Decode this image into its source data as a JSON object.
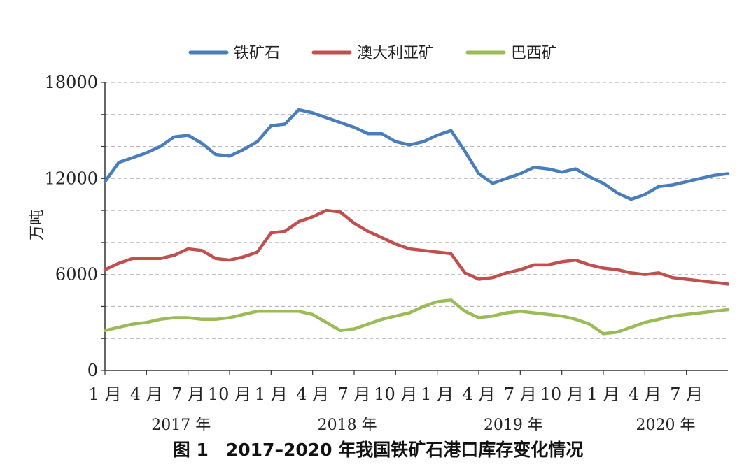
{
  "caption": "图 1　2017–2020 年我国铁矿石港口库存变化情况",
  "chart_data": {
    "type": "line",
    "title": "",
    "ylabel": "万吨",
    "xlabel": "",
    "ylim": [
      0,
      18000
    ],
    "yticks": [
      0,
      6000,
      12000,
      18000
    ],
    "ytick_labels": [
      "0",
      "6000",
      "12000",
      "18000"
    ],
    "grid": "horizontal dashed",
    "legend_position": "top",
    "x_month_ticks": [
      1,
      4,
      7,
      10,
      13,
      16,
      19,
      22,
      25,
      28,
      31,
      34,
      37,
      40,
      43
    ],
    "x_tick_labels": [
      "1 月",
      "4 月",
      "7 月",
      "10 月",
      "1 月",
      "4 月",
      "7 月",
      "10 月",
      "1 月",
      "4 月",
      "7 月",
      "10 月",
      "1 月",
      "4 月",
      "7 月"
    ],
    "year_labels": [
      "2017 年",
      "2018 年",
      "2019 年",
      "2020 年"
    ],
    "x_months": [
      1,
      2,
      3,
      4,
      5,
      6,
      7,
      8,
      9,
      10,
      11,
      12,
      13,
      14,
      15,
      16,
      17,
      18,
      19,
      20,
      21,
      22,
      23,
      24,
      25,
      26,
      27,
      28,
      29,
      30,
      31,
      32,
      33,
      34,
      35,
      36,
      37,
      38,
      39,
      40,
      41,
      42,
      43,
      44,
      45,
      46
    ],
    "series": [
      {
        "name": "铁矿石",
        "color": "#4a7ebb",
        "values": [
          11800,
          13000,
          13300,
          13600,
          14000,
          14600,
          14700,
          14200,
          13500,
          13400,
          13800,
          14300,
          15300,
          15400,
          16300,
          16100,
          15800,
          15500,
          15200,
          14800,
          14800,
          14300,
          14100,
          14300,
          14700,
          15000,
          13700,
          12300,
          11700,
          12000,
          12300,
          12700,
          12600,
          12400,
          12600,
          12100,
          11700,
          11100,
          10700,
          11000,
          11500,
          11600,
          11800,
          12000,
          12200,
          12300
        ],
        "label_anchor": "top"
      },
      {
        "name": "澳大利亚矿",
        "color": "#c0504d",
        "values": [
          6300,
          6700,
          7000,
          7000,
          7000,
          7200,
          7600,
          7500,
          7000,
          6900,
          7100,
          7400,
          8600,
          8700,
          9300,
          9600,
          10000,
          9900,
          9200,
          8700,
          8300,
          7900,
          7600,
          7500,
          7400,
          7300,
          6100,
          5700,
          5800,
          6100,
          6300,
          6600,
          6600,
          6800,
          6900,
          6600,
          6400,
          6300,
          6100,
          6000,
          6100,
          5800,
          5700,
          5600,
          5500,
          5400
        ]
      },
      {
        "name": "巴西矿",
        "color": "#9bbb59",
        "values": [
          2500,
          2700,
          2900,
          3000,
          3200,
          3300,
          3300,
          3200,
          3200,
          3300,
          3500,
          3700,
          3700,
          3700,
          3700,
          3500,
          3000,
          2500,
          2600,
          2900,
          3200,
          3400,
          3600,
          4000,
          4300,
          4400,
          3700,
          3300,
          3400,
          3600,
          3700,
          3600,
          3500,
          3400,
          3200,
          2900,
          2300,
          2400,
          2700,
          3000,
          3200,
          3400,
          3500,
          3600,
          3700,
          3800
        ]
      }
    ]
  }
}
